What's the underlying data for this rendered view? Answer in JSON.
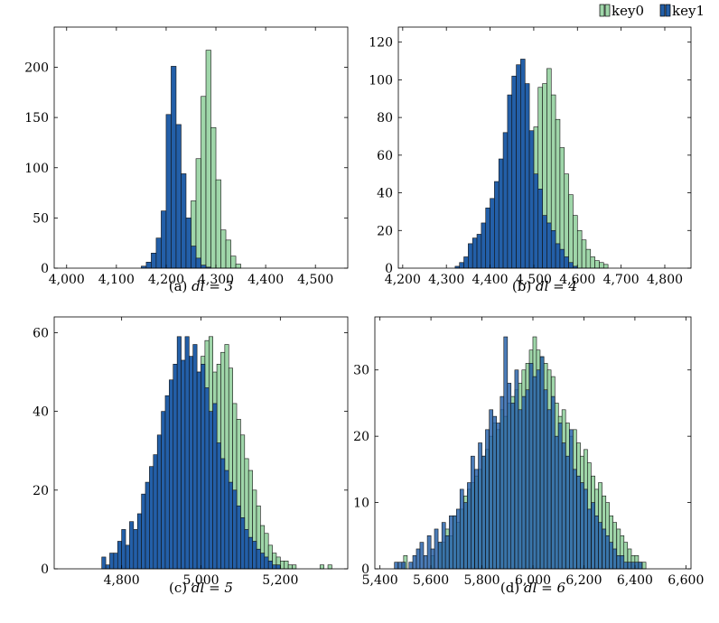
{
  "legend": [
    {
      "name": "key0",
      "color": "#9fd6a9"
    },
    {
      "name": "key1",
      "color": "#235fa8"
    }
  ],
  "colors": {
    "key0": "#9fd6a9",
    "key1": "#235fa8",
    "key1_overlap": "#1b3f6e",
    "stroke": "#111111"
  },
  "chart_data": [
    {
      "type": "bar",
      "caption_prefix": "(a) ",
      "caption_math": "dl = 3",
      "xlim": [
        3975,
        4565
      ],
      "ylim": [
        0,
        240
      ],
      "xticks": [
        4000,
        4100,
        4200,
        4300,
        4400,
        4500
      ],
      "xtick_labels": [
        "4,000",
        "4,100",
        "4,200",
        "4,300",
        "4,400",
        "4,500"
      ],
      "yticks": [
        0,
        50,
        100,
        150,
        200
      ],
      "ytick_labels": [
        "0",
        "50",
        "100",
        "150",
        "200"
      ],
      "bin_width": 10,
      "series": [
        {
          "name": "key0",
          "x": [
            4205,
            4215,
            4225,
            4235,
            4245,
            4255,
            4265,
            4275,
            4285,
            4295,
            4305,
            4315,
            4325,
            4335,
            4345
          ],
          "values": [
            1,
            2,
            5,
            14,
            36,
            67,
            109,
            171,
            217,
            140,
            88,
            38,
            28,
            12,
            4
          ]
        },
        {
          "name": "key1",
          "x": [
            4155,
            4165,
            4175,
            4185,
            4195,
            4205,
            4215,
            4225,
            4235,
            4245,
            4255,
            4265,
            4275,
            4285
          ],
          "values": [
            2,
            6,
            15,
            30,
            57,
            153,
            201,
            143,
            94,
            50,
            22,
            10,
            3,
            1
          ]
        }
      ]
    },
    {
      "type": "bar",
      "caption_prefix": "(b) ",
      "caption_math": "dl = 4",
      "xlim": [
        4190,
        4860
      ],
      "ylim": [
        0,
        128
      ],
      "xticks": [
        4200,
        4300,
        4400,
        4500,
        4600,
        4700,
        4800
      ],
      "xtick_labels": [
        "4,200",
        "4,300",
        "4,400",
        "4,500",
        "4,600",
        "4,700",
        "4,800"
      ],
      "yticks": [
        0,
        20,
        40,
        60,
        80,
        100,
        120
      ],
      "ytick_labels": [
        "0",
        "20",
        "40",
        "60",
        "80",
        "100",
        "120"
      ],
      "bin_width": 10,
      "series": [
        {
          "name": "key0",
          "x": [
            4425,
            4435,
            4445,
            4455,
            4465,
            4475,
            4485,
            4495,
            4505,
            4515,
            4525,
            4535,
            4545,
            4555,
            4565,
            4575,
            4585,
            4595,
            4605,
            4615,
            4625,
            4635,
            4645,
            4655,
            4665
          ],
          "values": [
            2,
            4,
            8,
            12,
            18,
            25,
            40,
            55,
            75,
            96,
            98,
            106,
            92,
            79,
            64,
            50,
            39,
            28,
            20,
            15,
            10,
            6,
            4,
            3,
            2
          ]
        },
        {
          "name": "key1",
          "x": [
            4325,
            4335,
            4345,
            4355,
            4365,
            4375,
            4385,
            4395,
            4405,
            4415,
            4425,
            4435,
            4445,
            4455,
            4465,
            4475,
            4485,
            4495,
            4505,
            4515,
            4525,
            4535,
            4545,
            4555,
            4565,
            4575,
            4585,
            4595
          ],
          "values": [
            1,
            3,
            6,
            13,
            16,
            18,
            24,
            32,
            37,
            46,
            58,
            72,
            92,
            102,
            108,
            111,
            98,
            73,
            50,
            42,
            28,
            24,
            20,
            13,
            10,
            6,
            3,
            1
          ]
        }
      ]
    },
    {
      "type": "bar",
      "caption_prefix": "(c) ",
      "caption_math": "dl = 5",
      "xlim": [
        4630,
        5370
      ],
      "ylim": [
        0,
        64
      ],
      "xticks": [
        4800,
        5000,
        5200
      ],
      "xtick_labels": [
        "4,800",
        "5,000",
        "5,200"
      ],
      "yticks": [
        0,
        20,
        40,
        60
      ],
      "ytick_labels": [
        "0",
        "20",
        "40",
        "60"
      ],
      "bin_width": 10,
      "series": [
        {
          "name": "key0",
          "x": [
            4955,
            4965,
            4975,
            4985,
            4995,
            5005,
            5015,
            5025,
            5035,
            5045,
            5055,
            5065,
            5075,
            5085,
            5095,
            5105,
            5115,
            5125,
            5135,
            5145,
            5155,
            5165,
            5175,
            5185,
            5195,
            5205,
            5215,
            5225,
            5235,
            5305,
            5325
          ],
          "values": [
            34,
            38,
            42,
            45,
            50,
            54,
            58,
            59,
            50,
            52,
            55,
            57,
            51,
            42,
            38,
            34,
            28,
            25,
            20,
            16,
            11,
            9,
            6,
            4,
            3,
            2,
            2,
            1,
            1,
            1,
            1
          ]
        },
        {
          "name": "key1",
          "x": [
            4755,
            4765,
            4775,
            4785,
            4795,
            4805,
            4815,
            4825,
            4835,
            4845,
            4855,
            4865,
            4875,
            4885,
            4895,
            4905,
            4915,
            4925,
            4935,
            4945,
            4955,
            4965,
            4975,
            4985,
            4995,
            5005,
            5015,
            5025,
            5035,
            5045,
            5055,
            5065,
            5075,
            5085,
            5095,
            5105,
            5115,
            5125,
            5135,
            5145,
            5155,
            5165,
            5175,
            5185,
            5195
          ],
          "values": [
            3,
            1,
            4,
            4,
            7,
            10,
            6,
            12,
            10,
            14,
            19,
            22,
            26,
            29,
            34,
            40,
            44,
            48,
            52,
            59,
            53,
            59,
            54,
            57,
            50,
            52,
            46,
            40,
            42,
            32,
            28,
            25,
            22,
            20,
            16,
            13,
            10,
            8,
            7,
            5,
            4,
            3,
            2,
            1,
            1
          ]
        }
      ]
    },
    {
      "type": "bar",
      "caption_prefix": "(d) ",
      "caption_math": "dl = 6",
      "xlim": [
        5380,
        6620
      ],
      "ylim": [
        0,
        38
      ],
      "xticks": [
        5400,
        5600,
        5800,
        6000,
        6200,
        6400,
        6600
      ],
      "xtick_labels": [
        "5,400",
        "5,600",
        "5,800",
        "6,000",
        "6,200",
        "6,400",
        "6,600"
      ],
      "yticks": [
        0,
        10,
        20,
        30
      ],
      "ytick_labels": [
        "0",
        "10",
        "20",
        "30"
      ],
      "bin_width": 14.3,
      "series": [
        {
          "name": "key0",
          "x": [
            5500,
            5607,
            5636,
            5650,
            5664,
            5679,
            5693,
            5707,
            5721,
            5736,
            5750,
            5764,
            5779,
            5793,
            5807,
            5821,
            5836,
            5850,
            5864,
            5879,
            5893,
            5907,
            5921,
            5936,
            5950,
            5964,
            5979,
            5993,
            6007,
            6021,
            6036,
            6050,
            6064,
            6079,
            6093,
            6107,
            6121,
            6136,
            6150,
            6164,
            6179,
            6193,
            6207,
            6221,
            6236,
            6250,
            6264,
            6279,
            6293,
            6307,
            6321,
            6336,
            6350,
            6364,
            6379,
            6393,
            6407,
            6421,
            6436
          ],
          "values": [
            2,
            2,
            4,
            4,
            6,
            5,
            8,
            7,
            9,
            11,
            12,
            13,
            14,
            15,
            17,
            18,
            20,
            22,
            21,
            24,
            23,
            25,
            26,
            27,
            28,
            30,
            31,
            33,
            35,
            33,
            32,
            31,
            30,
            29,
            25,
            23,
            24,
            22,
            20,
            21,
            19,
            17,
            18,
            16,
            14,
            12,
            13,
            11,
            10,
            8,
            7,
            6,
            5,
            4,
            3,
            2,
            2,
            1,
            1
          ]
        },
        {
          "name": "key1",
          "x": [
            5464,
            5479,
            5493,
            5521,
            5536,
            5550,
            5564,
            5579,
            5593,
            5607,
            5621,
            5636,
            5650,
            5664,
            5679,
            5693,
            5707,
            5721,
            5736,
            5750,
            5764,
            5779,
            5793,
            5807,
            5821,
            5836,
            5850,
            5864,
            5879,
            5893,
            5907,
            5921,
            5936,
            5950,
            5964,
            5979,
            5993,
            6007,
            6021,
            6036,
            6050,
            6064,
            6079,
            6093,
            6107,
            6121,
            6136,
            6150,
            6164,
            6179,
            6193,
            6207,
            6221,
            6236,
            6250,
            6264,
            6279,
            6293,
            6307,
            6321,
            6336,
            6350,
            6364,
            6379,
            6393,
            6407,
            6421
          ],
          "values": [
            1,
            1,
            1,
            1,
            2,
            3,
            4,
            2,
            5,
            3,
            6,
            4,
            7,
            5,
            8,
            8,
            9,
            12,
            10,
            13,
            17,
            15,
            19,
            17,
            21,
            24,
            23,
            22,
            26,
            35,
            28,
            25,
            30,
            24,
            26,
            27,
            31,
            29,
            30,
            32,
            27,
            24,
            26,
            20,
            22,
            19,
            17,
            21,
            15,
            14,
            13,
            12,
            9,
            10,
            8,
            7,
            6,
            5,
            4,
            3,
            2,
            2,
            1,
            1,
            1,
            1,
            1
          ]
        }
      ]
    }
  ]
}
